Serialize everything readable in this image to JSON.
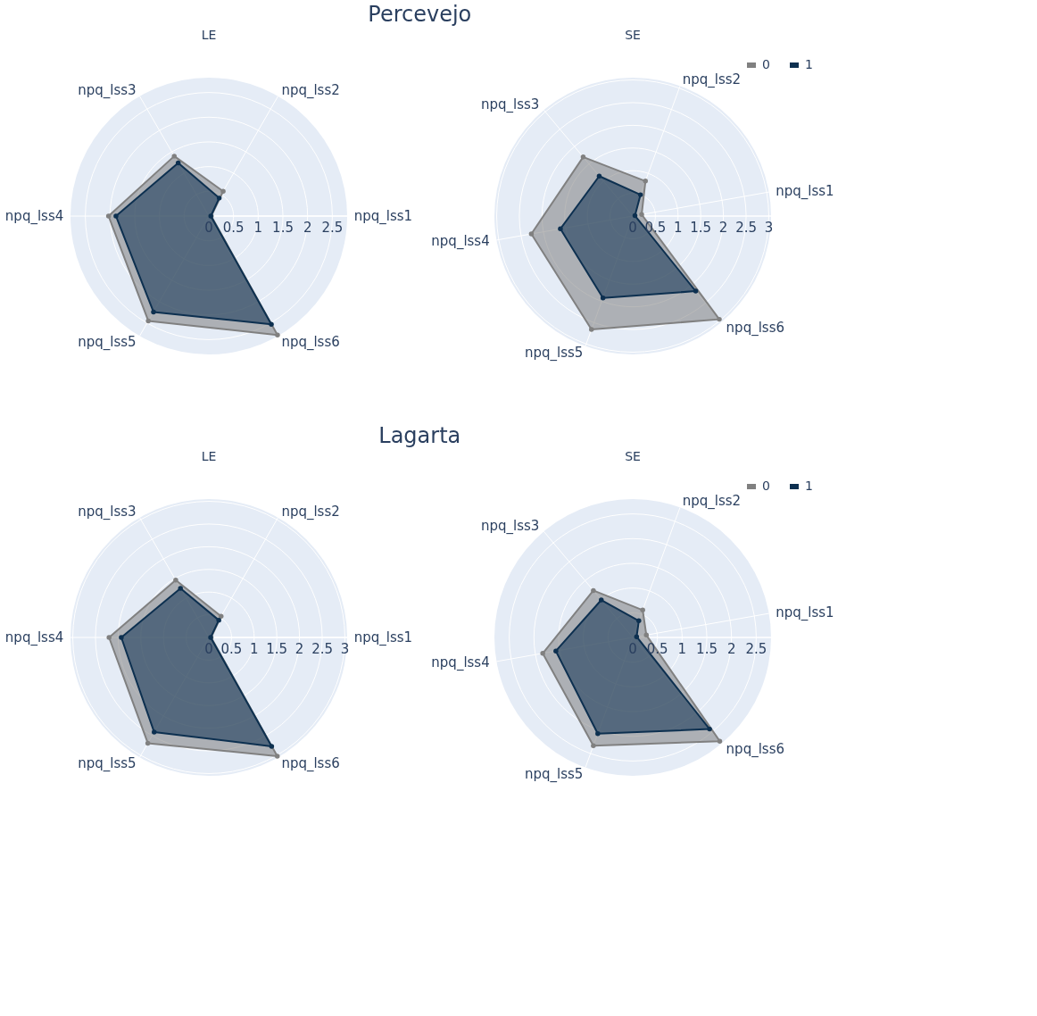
{
  "chart_data": [
    {
      "type": "radar",
      "title": "Percevejo",
      "subtitle": "LE",
      "categories": [
        "npq_lss2",
        "npq_lss1",
        "npq_lss6",
        "npq_lss5",
        "npq_lss4",
        "npq_lss3"
      ],
      "ylim": [
        0,
        2.8
      ],
      "yticks": [
        0,
        0.5,
        1,
        1.5,
        2,
        2.5
      ],
      "grid": true,
      "legend": false,
      "marker": "circle",
      "series": [
        {
          "name": "0",
          "color": "#808080",
          "values": [
            0.58,
            0.05,
            2.78,
            2.45,
            2.03,
            1.4
          ]
        },
        {
          "name": "1",
          "color": "#0d3050",
          "values": [
            0.42,
            0.04,
            2.53,
            2.24,
            1.88,
            1.24
          ]
        }
      ]
    },
    {
      "type": "radar",
      "subtitle": "SE",
      "categories": [
        "npq_lss2",
        "npq_lss1",
        "npq_lss6",
        "npq_lss5",
        "npq_lss4",
        "npq_lss3"
      ],
      "ylim": [
        0,
        3.05
      ],
      "yticks": [
        0,
        0.5,
        1,
        1.5,
        2,
        2.5,
        3
      ],
      "grid": true,
      "legend": "top right",
      "marker": "circle",
      "series": [
        {
          "name": "0",
          "color": "#808080",
          "values": [
            0.82,
            0.2,
            2.97,
            2.66,
            2.27,
            1.7
          ]
        },
        {
          "name": "1",
          "color": "#0d3050",
          "values": [
            0.5,
            0.05,
            2.16,
            1.92,
            1.62,
            1.15
          ]
        }
      ]
    },
    {
      "type": "radar",
      "title": "Lagarta",
      "subtitle": "LE",
      "categories": [
        "npq_lss2",
        "npq_lss1",
        "npq_lss6",
        "npq_lss5",
        "npq_lss4",
        "npq_lss3"
      ],
      "ylim": [
        0,
        3.05
      ],
      "yticks": [
        0,
        0.5,
        1,
        1.5,
        2,
        2.5,
        3
      ],
      "grid": true,
      "legend": false,
      "marker": "circle",
      "series": [
        {
          "name": "0",
          "color": "#808080",
          "values": [
            0.54,
            0.05,
            3.02,
            2.69,
            2.2,
            1.46
          ]
        },
        {
          "name": "1",
          "color": "#0d3050",
          "values": [
            0.44,
            0.04,
            2.77,
            2.41,
            1.93,
            1.25
          ]
        }
      ]
    },
    {
      "type": "radar",
      "subtitle": "SE",
      "categories": [
        "npq_lss2",
        "npq_lss1",
        "npq_lss6",
        "npq_lss5",
        "npq_lss4",
        "npq_lss3"
      ],
      "ylim": [
        0,
        2.8
      ],
      "yticks": [
        0,
        0.5,
        1,
        1.5,
        2,
        2.5
      ],
      "grid": true,
      "legend": "top right",
      "marker": "circle",
      "series": [
        {
          "name": "0",
          "color": "#808080",
          "values": [
            0.59,
            0.28,
            2.74,
            2.33,
            1.85,
            1.24
          ]
        },
        {
          "name": "1",
          "color": "#0d3050",
          "values": [
            0.36,
            0.08,
            2.42,
            2.07,
            1.58,
            0.99
          ]
        }
      ]
    }
  ]
}
